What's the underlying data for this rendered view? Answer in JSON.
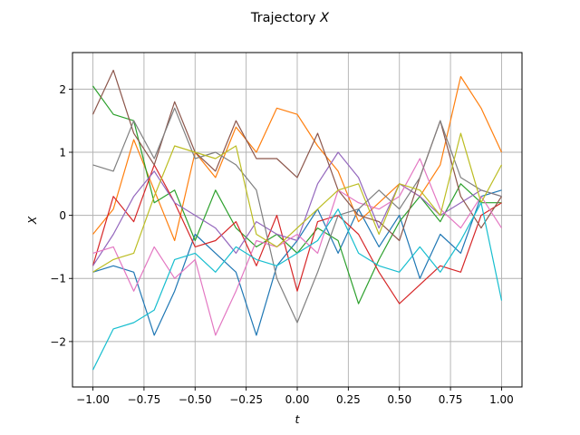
{
  "chart_data": {
    "type": "line",
    "title": "Trajectory X",
    "title_plain": "Trajectory ",
    "title_var": "X",
    "xlabel": "t",
    "ylabel": "X",
    "xlim": [
      -1.1,
      1.1
    ],
    "ylim": [
      -2.72,
      2.58
    ],
    "grid": true,
    "legend": "none",
    "x_ticks": [
      -1.0,
      -0.75,
      -0.5,
      -0.25,
      0.0,
      0.25,
      0.5,
      0.75,
      1.0
    ],
    "x_tick_labels": [
      "−1.00",
      "−0.75",
      "−0.50",
      "−0.25",
      "0.00",
      "0.25",
      "0.50",
      "0.75",
      "1.00"
    ],
    "y_ticks": [
      -2,
      -1,
      0,
      1,
      2
    ],
    "y_tick_labels": [
      "−2",
      "−1",
      "0",
      "1",
      "2"
    ],
    "x": [
      -1.0,
      -0.9,
      -0.8,
      -0.7,
      -0.6,
      -0.5,
      -0.4,
      -0.3,
      -0.2,
      -0.1,
      0.0,
      0.1,
      0.2,
      0.3,
      0.4,
      0.5,
      0.6,
      0.7,
      0.8,
      0.9,
      1.0
    ],
    "series": [
      {
        "color": "#1f77b4",
        "values": [
          -0.9,
          -0.8,
          -0.9,
          -1.9,
          -1.2,
          -0.3,
          -0.6,
          -0.9,
          -1.9,
          -0.8,
          -0.4,
          0.1,
          -0.6,
          0.1,
          -0.5,
          0.0,
          -1.0,
          -0.3,
          -0.6,
          0.3,
          0.4
        ]
      },
      {
        "color": "#ff7f0e",
        "values": [
          -0.3,
          0.1,
          1.2,
          0.4,
          -0.4,
          1.0,
          0.6,
          1.4,
          1.0,
          1.7,
          1.6,
          1.1,
          0.7,
          -0.1,
          0.2,
          0.5,
          0.3,
          0.8,
          2.2,
          1.7,
          1.0
        ]
      },
      {
        "color": "#2ca02c",
        "values": [
          2.05,
          1.6,
          1.5,
          0.2,
          0.4,
          -0.4,
          0.4,
          -0.2,
          -0.5,
          -0.3,
          -0.6,
          -0.2,
          -0.4,
          -1.4,
          -0.7,
          -0.1,
          0.3,
          -0.1,
          0.5,
          0.2,
          0.2
        ]
      },
      {
        "color": "#d62728",
        "values": [
          -0.8,
          0.3,
          -0.1,
          0.8,
          0.2,
          -0.5,
          -0.4,
          -0.1,
          -0.8,
          0.0,
          -1.2,
          -0.1,
          0.0,
          -0.3,
          -0.9,
          -1.4,
          -1.1,
          -0.8,
          -0.9,
          0.0,
          0.2
        ]
      },
      {
        "color": "#9467bd",
        "values": [
          -0.8,
          -0.3,
          0.3,
          0.7,
          0.2,
          0.0,
          -0.2,
          -0.6,
          -0.1,
          -0.3,
          -0.4,
          0.5,
          1.0,
          0.6,
          -0.2,
          0.5,
          0.3,
          0.0,
          0.2,
          0.4,
          0.3
        ]
      },
      {
        "color": "#8c564b",
        "values": [
          1.6,
          2.3,
          1.3,
          0.8,
          1.8,
          1.0,
          0.7,
          1.5,
          0.9,
          0.9,
          0.6,
          1.3,
          0.4,
          0.0,
          -0.1,
          -0.4,
          0.6,
          1.5,
          0.3,
          -0.2,
          0.3
        ]
      },
      {
        "color": "#e377c2",
        "values": [
          -0.6,
          -0.5,
          -1.2,
          -0.5,
          -1.0,
          -0.7,
          -1.9,
          -1.2,
          -0.4,
          -0.5,
          -0.3,
          -0.6,
          0.4,
          0.2,
          0.1,
          0.3,
          0.9,
          0.1,
          -0.2,
          0.3,
          -0.2
        ]
      },
      {
        "color": "#7f7f7f",
        "values": [
          0.8,
          0.7,
          1.5,
          0.9,
          1.7,
          0.9,
          1.0,
          0.8,
          0.4,
          -1.0,
          -1.7,
          -0.9,
          0.0,
          0.1,
          0.4,
          0.1,
          0.6,
          1.5,
          0.6,
          0.4,
          0.3
        ]
      },
      {
        "color": "#bcbd22",
        "values": [
          -0.9,
          -0.7,
          -0.6,
          0.3,
          1.1,
          1.0,
          0.9,
          1.1,
          -0.3,
          -0.5,
          -0.2,
          0.1,
          0.4,
          0.5,
          -0.3,
          0.5,
          0.4,
          0.0,
          1.3,
          0.2,
          0.8
        ]
      },
      {
        "color": "#17becf",
        "values": [
          -2.45,
          -1.8,
          -1.7,
          -1.5,
          -0.7,
          -0.6,
          -0.9,
          -0.5,
          -0.7,
          -0.8,
          -0.6,
          -0.4,
          0.1,
          -0.6,
          -0.8,
          -0.9,
          -0.5,
          -0.9,
          -0.4,
          0.2,
          -1.35
        ]
      }
    ]
  }
}
